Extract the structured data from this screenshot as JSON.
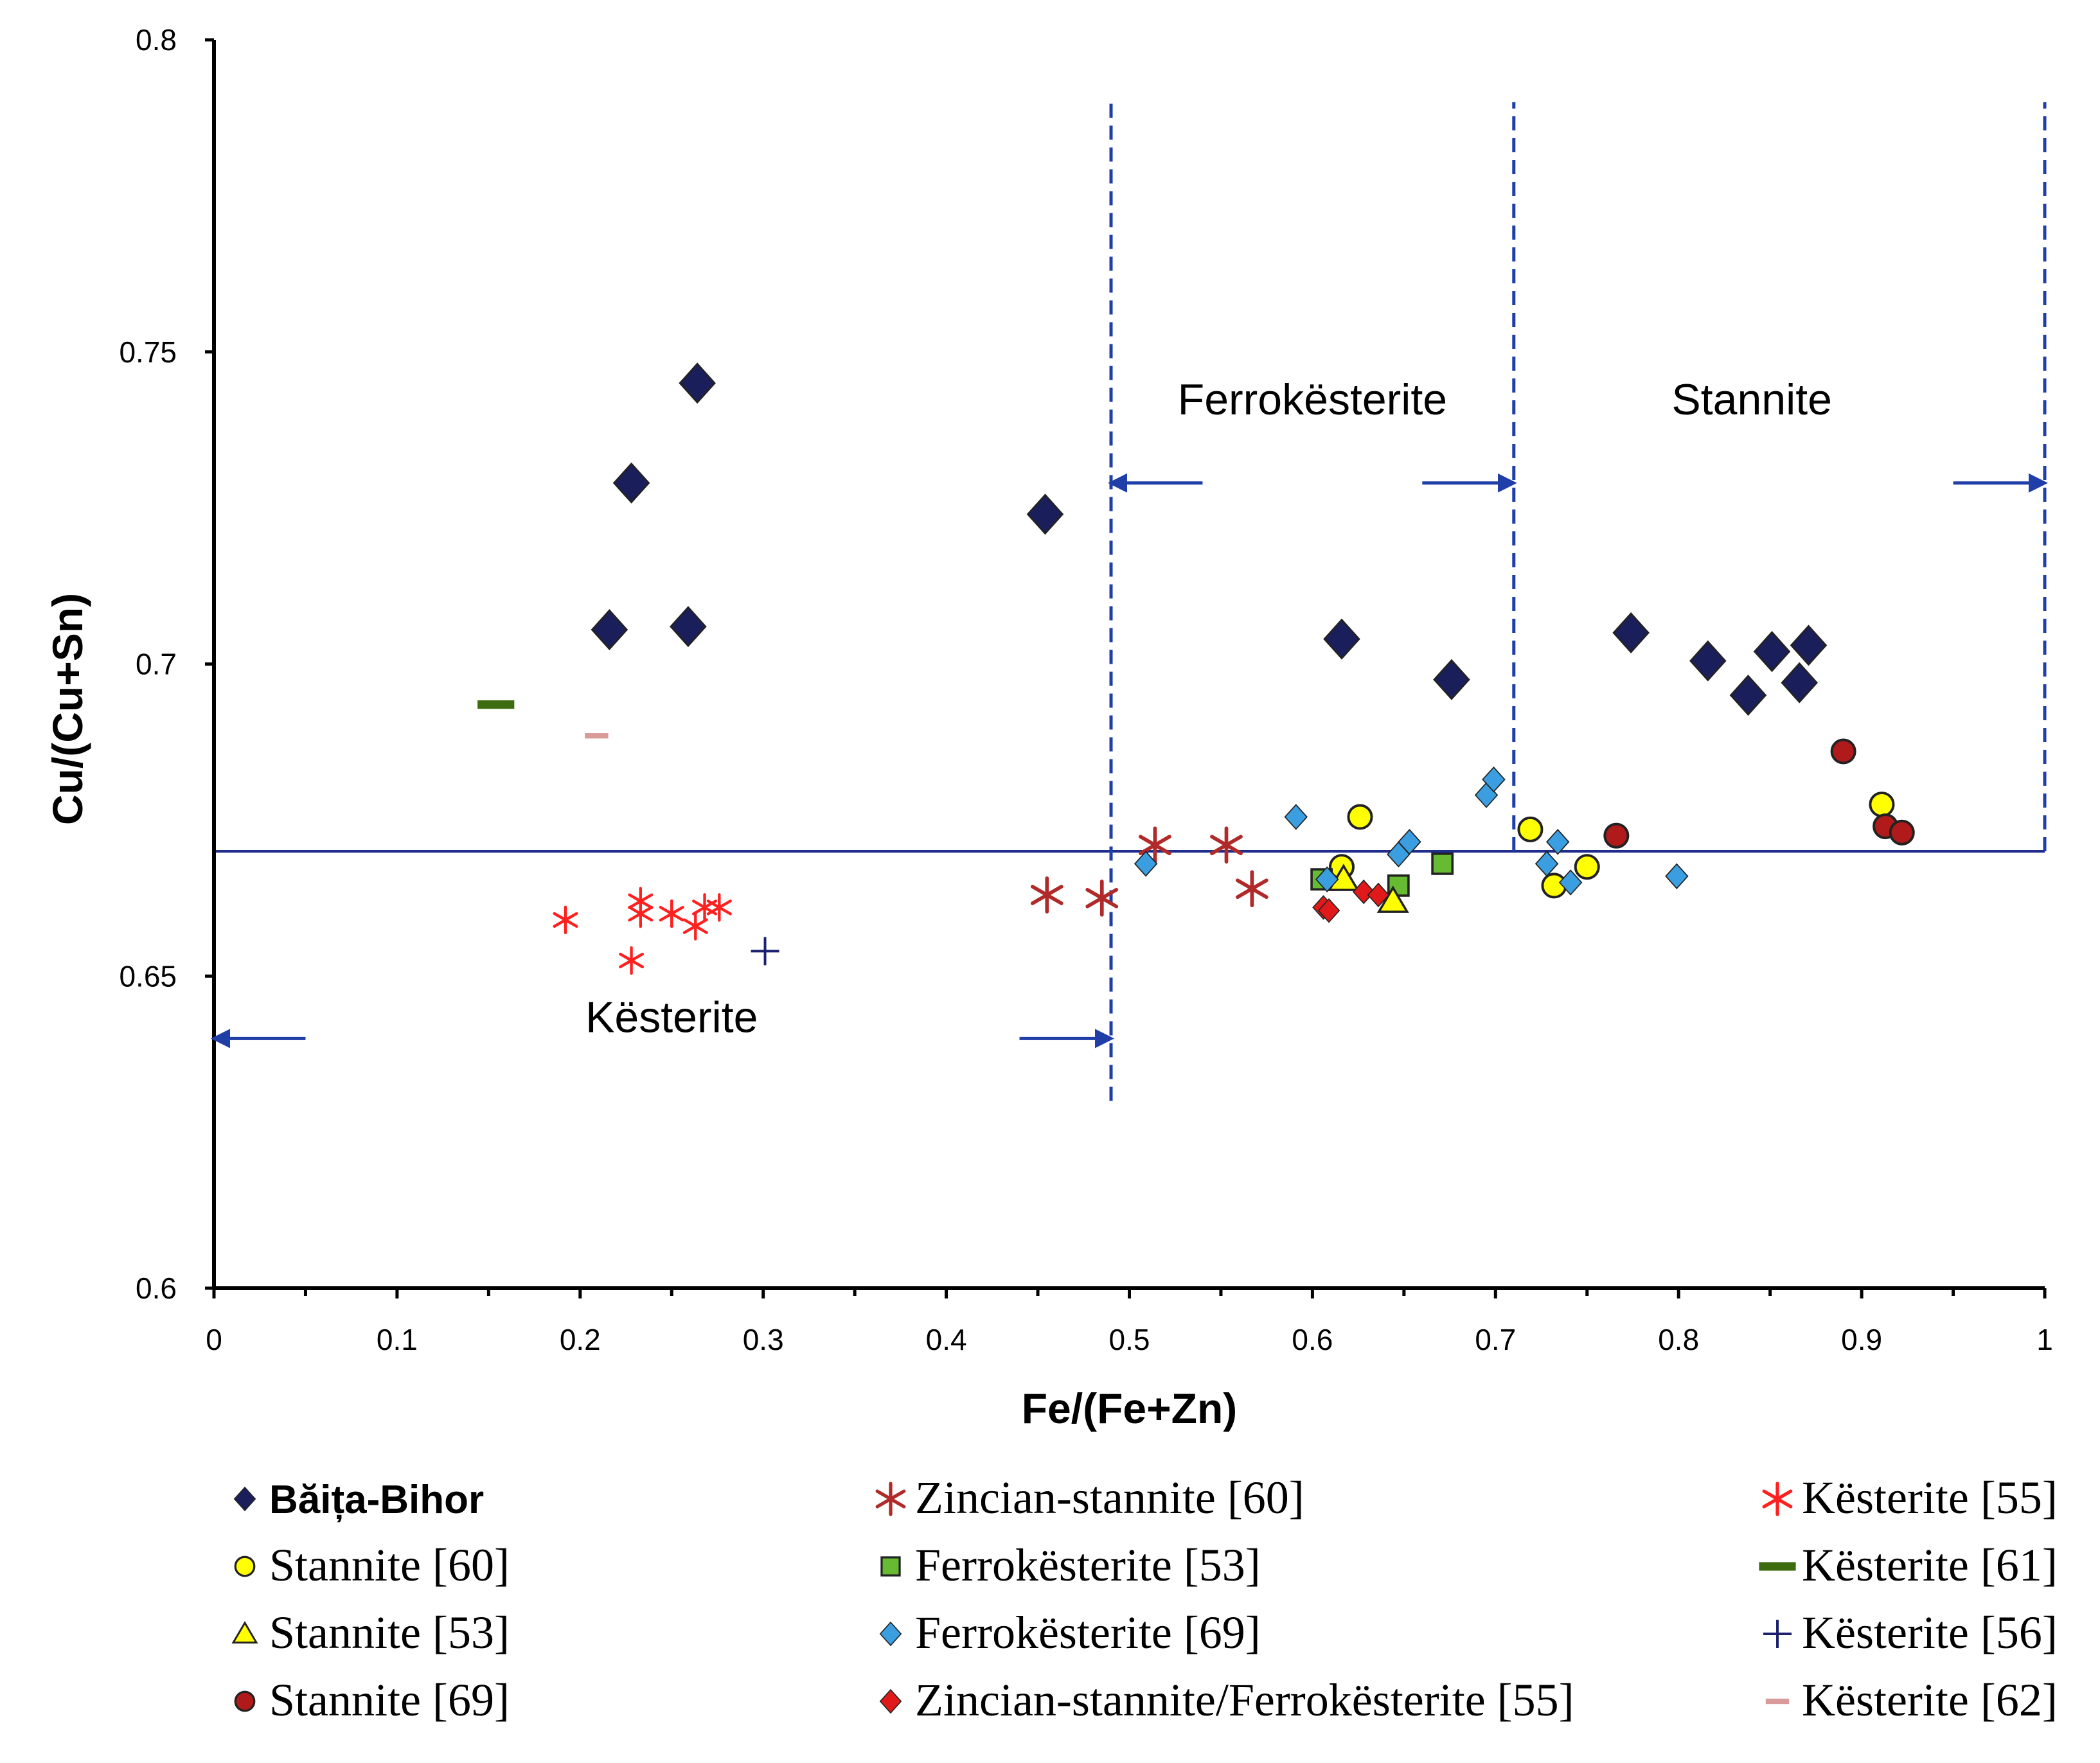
{
  "chart_data": {
    "type": "scatter",
    "title": "",
    "xlabel": "Fe/(Fe+Zn)",
    "ylabel": "Cu/(Cu+Sn)",
    "xlim": [
      0,
      1
    ],
    "ylim": [
      0.6,
      0.8
    ],
    "xticks": [
      0,
      0.1,
      0.2,
      0.3,
      0.4,
      0.5,
      0.6,
      0.7,
      0.8,
      0.9,
      1
    ],
    "xtick_labels": [
      "0",
      "0.1",
      "0.2",
      "0.3",
      "0.4",
      "0.5",
      "0.6",
      "0.7",
      "0.8",
      "0.9",
      "1"
    ],
    "yticks": [
      0.6,
      0.65,
      0.7,
      0.75,
      0.8
    ],
    "ytick_labels": [
      "0.6",
      "0.65",
      "0.7",
      "0.75",
      "0.8"
    ],
    "grid": false,
    "legend_position": "bottom",
    "reference_lines": {
      "horizontal_y": 0.67,
      "horizontal_x_range": [
        0,
        1
      ],
      "vertical_dashed": [
        {
          "x": 0.49,
          "y_range": [
            0.63,
            0.79
          ]
        },
        {
          "x": 0.71,
          "y_range": [
            0.67,
            0.79
          ]
        },
        {
          "x": 1.0,
          "y_range": [
            0.67,
            0.79
          ]
        }
      ]
    },
    "regions": [
      {
        "name": "Kësterite",
        "x": 0.25,
        "y": 0.641,
        "arrows": [
          {
            "from": 0.05,
            "to": 0.0,
            "y": 0.64
          },
          {
            "from": 0.44,
            "to": 0.49,
            "y": 0.64
          }
        ]
      },
      {
        "name": "Ferrokësterite",
        "x": 0.6,
        "y": 0.74,
        "arrows": [
          {
            "from": 0.54,
            "to": 0.49,
            "y": 0.729
          },
          {
            "from": 0.66,
            "to": 0.71,
            "y": 0.729
          }
        ]
      },
      {
        "name": "Stannite",
        "x": 0.84,
        "y": 0.74,
        "arrows": [
          {
            "from": 0.95,
            "to": 1.0,
            "y": 0.729
          }
        ]
      }
    ],
    "series": [
      {
        "name": "Băița-Bihor",
        "marker": "diamond",
        "color": "#1a1f5c",
        "x": [
          0.264,
          0.228,
          0.216,
          0.259,
          0.454,
          0.616,
          0.676,
          0.774,
          0.816,
          0.838,
          0.851,
          0.866,
          0.871
        ],
        "y": [
          0.745,
          0.729,
          0.7055,
          0.706,
          0.724,
          0.704,
          0.6975,
          0.705,
          0.7005,
          0.695,
          0.702,
          0.697,
          0.703
        ]
      },
      {
        "name": "Zincian-stannite [60]",
        "marker": "asterisk",
        "color": "#b02a2a",
        "x": [
          0.455,
          0.485,
          0.514,
          0.553,
          0.567
        ],
        "y": [
          0.663,
          0.6625,
          0.671,
          0.671,
          0.664
        ]
      },
      {
        "name": "Kësterite [55]",
        "marker": "asterisk",
        "color": "#ff2020",
        "x": [
          0.192,
          0.228,
          0.233,
          0.233,
          0.25,
          0.263,
          0.268,
          0.276
        ],
        "y": [
          0.659,
          0.6525,
          0.662,
          0.66,
          0.66,
          0.658,
          0.661,
          0.661
        ]
      },
      {
        "name": "Stannite [60]",
        "marker": "circle",
        "color": "#ffff00",
        "x": [
          0.616,
          0.626,
          0.719,
          0.732,
          0.75,
          0.911
        ],
        "y": [
          0.6675,
          0.6755,
          0.6735,
          0.6645,
          0.6675,
          0.6775
        ]
      },
      {
        "name": "Ferrokësterite [53]",
        "marker": "square",
        "color": "#66bb33",
        "x": [
          0.605,
          0.647,
          0.671
        ],
        "y": [
          0.6655,
          0.6645,
          0.668
        ]
      },
      {
        "name": "Kësterite [61]",
        "marker": "dash",
        "color": "#3d6b10",
        "x": [
          0.154
        ],
        "y": [
          0.6935
        ]
      },
      {
        "name": "Stannite [53]",
        "marker": "triangle",
        "color": "#ffff00",
        "x": [
          0.617,
          0.644
        ],
        "y": [
          0.6655,
          0.662
        ]
      },
      {
        "name": "Ferrokësterite [69]",
        "marker": "diamond",
        "color": "#3a9ee0",
        "x": [
          0.509,
          0.591,
          0.608,
          0.647,
          0.653,
          0.695,
          0.699,
          0.728,
          0.734,
          0.741,
          0.799
        ],
        "y": [
          0.668,
          0.6755,
          0.6655,
          0.6695,
          0.6715,
          0.679,
          0.6815,
          0.668,
          0.6715,
          0.665,
          0.666
        ]
      },
      {
        "name": "Kësterite [56]",
        "marker": "plus",
        "color": "#1a1f6e",
        "x": [
          0.301
        ],
        "y": [
          0.654
        ]
      },
      {
        "name": "Stannite [69]",
        "marker": "circle",
        "color": "#b01a1a",
        "x": [
          0.766,
          0.89,
          0.913,
          0.922
        ],
        "y": [
          0.6725,
          0.686,
          0.674,
          0.673
        ]
      },
      {
        "name": "Zincian-stannite/Ferrokësterite [55]",
        "marker": "diamond",
        "color": "#e01a1a",
        "x": [
          0.606,
          0.609,
          0.628,
          0.636
        ],
        "y": [
          0.661,
          0.6605,
          0.6635,
          0.663
        ]
      },
      {
        "name": "Kësterite [62]",
        "marker": "dash",
        "color": "#d99a9a",
        "x": [
          0.209
        ],
        "y": [
          0.6885
        ]
      }
    ]
  },
  "legend": {
    "columns": [
      [
        "Băița-Bihor",
        "Stannite [60]",
        "Stannite [53]",
        "Stannite [69]"
      ],
      [
        "Zincian-stannite [60]",
        "Ferrokësterite [53]",
        "Ferrokësterite [69]",
        "Zincian-stannite/Ferrokësterite [55]"
      ],
      [
        "Kësterite [55]",
        "Kësterite [61]",
        "Kësterite [56]",
        "Kësterite [62]"
      ]
    ]
  },
  "colors": {
    "axis": "#000000",
    "reference": "#1f2d8c",
    "arrow": "#1f3ea8"
  }
}
